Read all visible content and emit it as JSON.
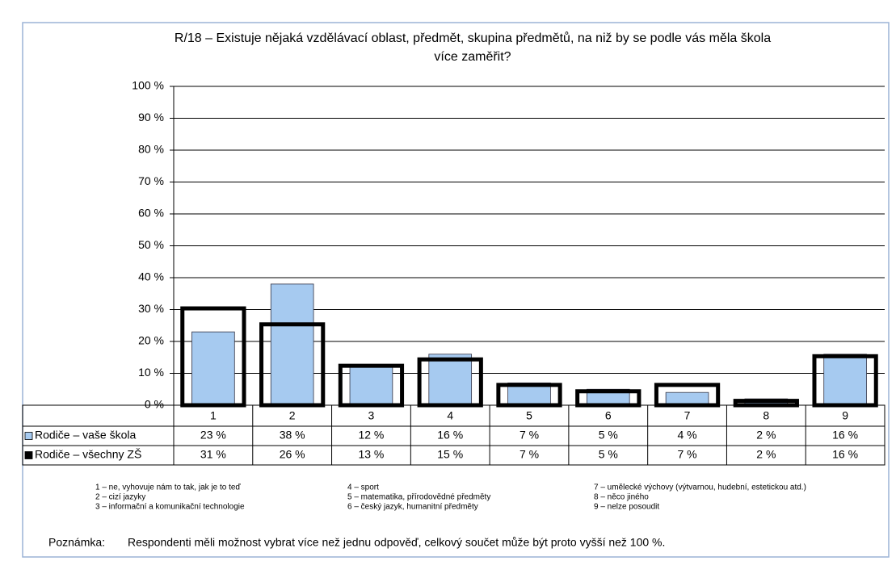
{
  "chart_data": {
    "type": "bar",
    "title": [
      "R/18 – Existuje nějaká vzdělávací oblast, předmět, skupina předmětů, na niž by se podle vás měla škola",
      "více zaměřit?"
    ],
    "categories": [
      "1",
      "2",
      "3",
      "4",
      "5",
      "6",
      "7",
      "8",
      "9"
    ],
    "series": [
      {
        "name": "Rodiče – vaše škola",
        "color": "#a6caf0",
        "style": "filled",
        "values": [
          23,
          38,
          12,
          16,
          7,
          5,
          4,
          2,
          16
        ],
        "value_labels": [
          "23 %",
          "38 %",
          "12 %",
          "16 %",
          "7 %",
          "5 %",
          "4 %",
          "2 %",
          "16 %"
        ]
      },
      {
        "name": "Rodiče – všechny ZŠ",
        "color": "#000000",
        "style": "outline",
        "values": [
          31,
          26,
          13,
          15,
          7,
          5,
          7,
          2,
          16
        ],
        "value_labels": [
          "31 %",
          "26 %",
          "13 %",
          "15 %",
          "7 %",
          "5 %",
          "7 %",
          "2 %",
          "16 %"
        ]
      }
    ],
    "ylim": [
      0,
      100
    ],
    "yticks": [
      {
        "value": 0,
        "label": "0 %"
      },
      {
        "value": 10,
        "label": "10 %"
      },
      {
        "value": 20,
        "label": "20 %"
      },
      {
        "value": 30,
        "label": "30 %"
      },
      {
        "value": 40,
        "label": "40 %"
      },
      {
        "value": 50,
        "label": "50 %"
      },
      {
        "value": 60,
        "label": "60 %"
      },
      {
        "value": 70,
        "label": "70 %"
      },
      {
        "value": 80,
        "label": "80 %"
      },
      {
        "value": 90,
        "label": "90 %"
      },
      {
        "value": 100,
        "label": "100 %"
      }
    ],
    "grid": true,
    "key": [
      "1 – ne, vyhovuje nám to tak, jak je to teď",
      "2 – cizí jazyky",
      "3 – informační a komunikační technologie",
      "4 – sport",
      "5 – matematika, přírodovědné předměty",
      "6 – český jazyk, humanitní předměty",
      "7 – umělecké výchovy (výtvarnou, hudební, estetickou atd.)",
      "8 – něco jiného",
      "9 – nelze posoudit"
    ],
    "note": {
      "label": "Poznámka:",
      "text": "Respondenti měli možnost vybrat více než jednu odpověď, celkový součet může být proto vyšší než 100 %."
    }
  }
}
